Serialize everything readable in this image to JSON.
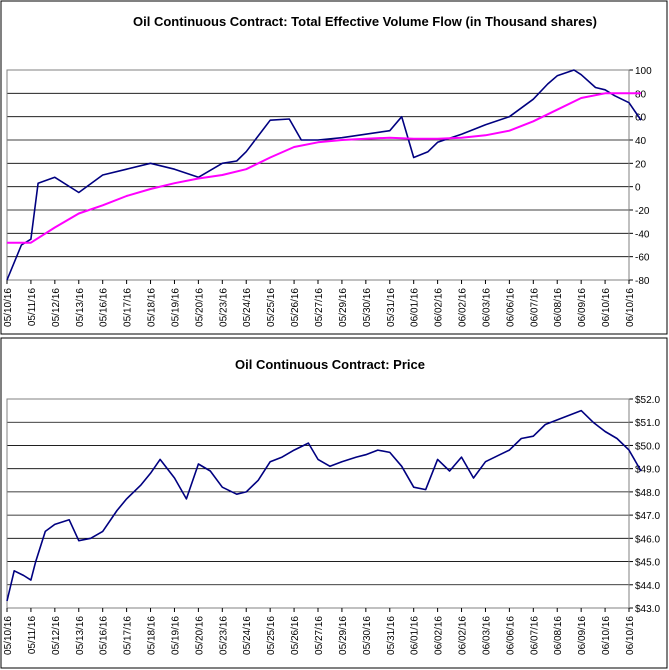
{
  "chart_data": [
    {
      "type": "line",
      "title": "Oil Continuous Contract: Total Effective Volume Flow (in Thousand shares)",
      "xlabel": "",
      "ylabel": "",
      "ylim": [
        -80,
        100
      ],
      "y_ticks": [
        100,
        80,
        60,
        40,
        20,
        0,
        -20,
        -40,
        -60,
        -80
      ],
      "y_tick_labels": [
        "100",
        "80",
        "60",
        "40",
        "20",
        "0",
        "-20",
        "-40",
        "-60",
        "-80"
      ],
      "grid": true,
      "categories": [
        "05/10/16",
        "05/11/16",
        "05/12/16",
        "05/13/16",
        "05/16/16",
        "05/17/16",
        "05/18/16",
        "05/19/16",
        "05/20/16",
        "05/23/16",
        "05/24/16",
        "05/25/16",
        "05/26/16",
        "05/27/16",
        "05/29/16",
        "05/30/16",
        "05/31/16",
        "06/01/16",
        "06/02/16",
        "06/02/16",
        "06/03/16",
        "06/06/16",
        "06/07/16",
        "06/08/16",
        "06/09/16",
        "06/10/16",
        "06/10/16"
      ],
      "series": [
        {
          "color": "#000080",
          "x": [
            0,
            0.6,
            1,
            1.3,
            2,
            3,
            4,
            5,
            6,
            7,
            8,
            9,
            9.6,
            10,
            11,
            11.8,
            12.3,
            13,
            14,
            15,
            16,
            16.5,
            17,
            17.6,
            18,
            19,
            20,
            21,
            22,
            22.6,
            23,
            23.7,
            24,
            24.6,
            25,
            25.4,
            26,
            26.5
          ],
          "values": [
            -80,
            -50,
            -45,
            3,
            8,
            -5,
            10,
            15,
            20,
            15,
            8,
            20,
            22,
            30,
            57,
            58,
            40,
            40,
            42,
            45,
            48,
            60,
            25,
            30,
            38,
            45,
            53,
            60,
            75,
            88,
            95,
            100,
            96,
            85,
            83,
            78,
            72,
            57
          ]
        },
        {
          "color": "#ff00ff",
          "x": [
            0,
            1,
            2,
            3,
            4,
            5,
            6,
            7,
            8,
            9,
            10,
            11,
            12,
            13,
            14,
            15,
            16,
            17,
            18,
            19,
            20,
            21,
            22,
            23,
            24,
            25,
            26,
            26.5
          ],
          "values": [
            -48,
            -48,
            -35,
            -23,
            -16,
            -8,
            -2,
            3,
            7,
            10,
            15,
            25,
            34,
            38,
            40,
            41,
            42,
            41,
            41,
            42,
            44,
            48,
            56,
            66,
            76,
            80,
            80,
            80
          ]
        }
      ]
    },
    {
      "type": "line",
      "title": "Oil Continuous Contract: Price",
      "xlabel": "",
      "ylabel": "",
      "ylim": [
        43,
        52
      ],
      "y_ticks": [
        52,
        51,
        50,
        49,
        48,
        47,
        46,
        45,
        44,
        43
      ],
      "y_tick_labels": [
        "$52.0",
        "$51.0",
        "$50.0",
        "$49.0",
        "$48.0",
        "$47.0",
        "$46.0",
        "$45.0",
        "$44.0",
        "$43.0"
      ],
      "grid": true,
      "categories": [
        "05/10/16",
        "05/11/16",
        "05/12/16",
        "05/13/16",
        "05/16/16",
        "05/17/16",
        "05/18/16",
        "05/19/16",
        "05/20/16",
        "05/23/16",
        "05/24/16",
        "05/25/16",
        "05/26/16",
        "05/27/16",
        "05/29/16",
        "05/30/16",
        "05/31/16",
        "06/01/16",
        "06/02/16",
        "06/02/16",
        "06/03/16",
        "06/06/16",
        "06/07/16",
        "06/08/16",
        "06/09/16",
        "06/10/16",
        "06/10/16"
      ],
      "series": [
        {
          "color": "#000080",
          "x": [
            0,
            0.3,
            0.7,
            1,
            1.2,
            1.6,
            2,
            2.6,
            3,
            3.5,
            4,
            4.6,
            5,
            5.6,
            6,
            6.4,
            7,
            7.5,
            8,
            8.5,
            9,
            9.6,
            10,
            10.5,
            11,
            11.5,
            12,
            12.6,
            13,
            13.5,
            14,
            14.6,
            15,
            15.5,
            16,
            16.5,
            17,
            17.5,
            18,
            18.5,
            19,
            19.5,
            20,
            20.6,
            21,
            21.5,
            22,
            22.5,
            23,
            23.5,
            24,
            24.5,
            25,
            25.5,
            26,
            26.5
          ],
          "values": [
            43.3,
            44.6,
            44.4,
            44.2,
            45.0,
            46.3,
            46.6,
            46.8,
            45.9,
            46.0,
            46.3,
            47.2,
            47.7,
            48.3,
            48.8,
            49.4,
            48.6,
            47.7,
            49.2,
            48.9,
            48.2,
            47.9,
            48.0,
            48.5,
            49.3,
            49.5,
            49.8,
            50.1,
            49.4,
            49.1,
            49.3,
            49.5,
            49.6,
            49.8,
            49.7,
            49.1,
            48.2,
            48.1,
            49.4,
            48.9,
            49.5,
            48.6,
            49.3,
            49.6,
            49.8,
            50.3,
            50.4,
            50.9,
            51.1,
            51.3,
            51.5,
            51.0,
            50.6,
            50.3,
            49.8,
            48.9
          ]
        }
      ]
    }
  ]
}
